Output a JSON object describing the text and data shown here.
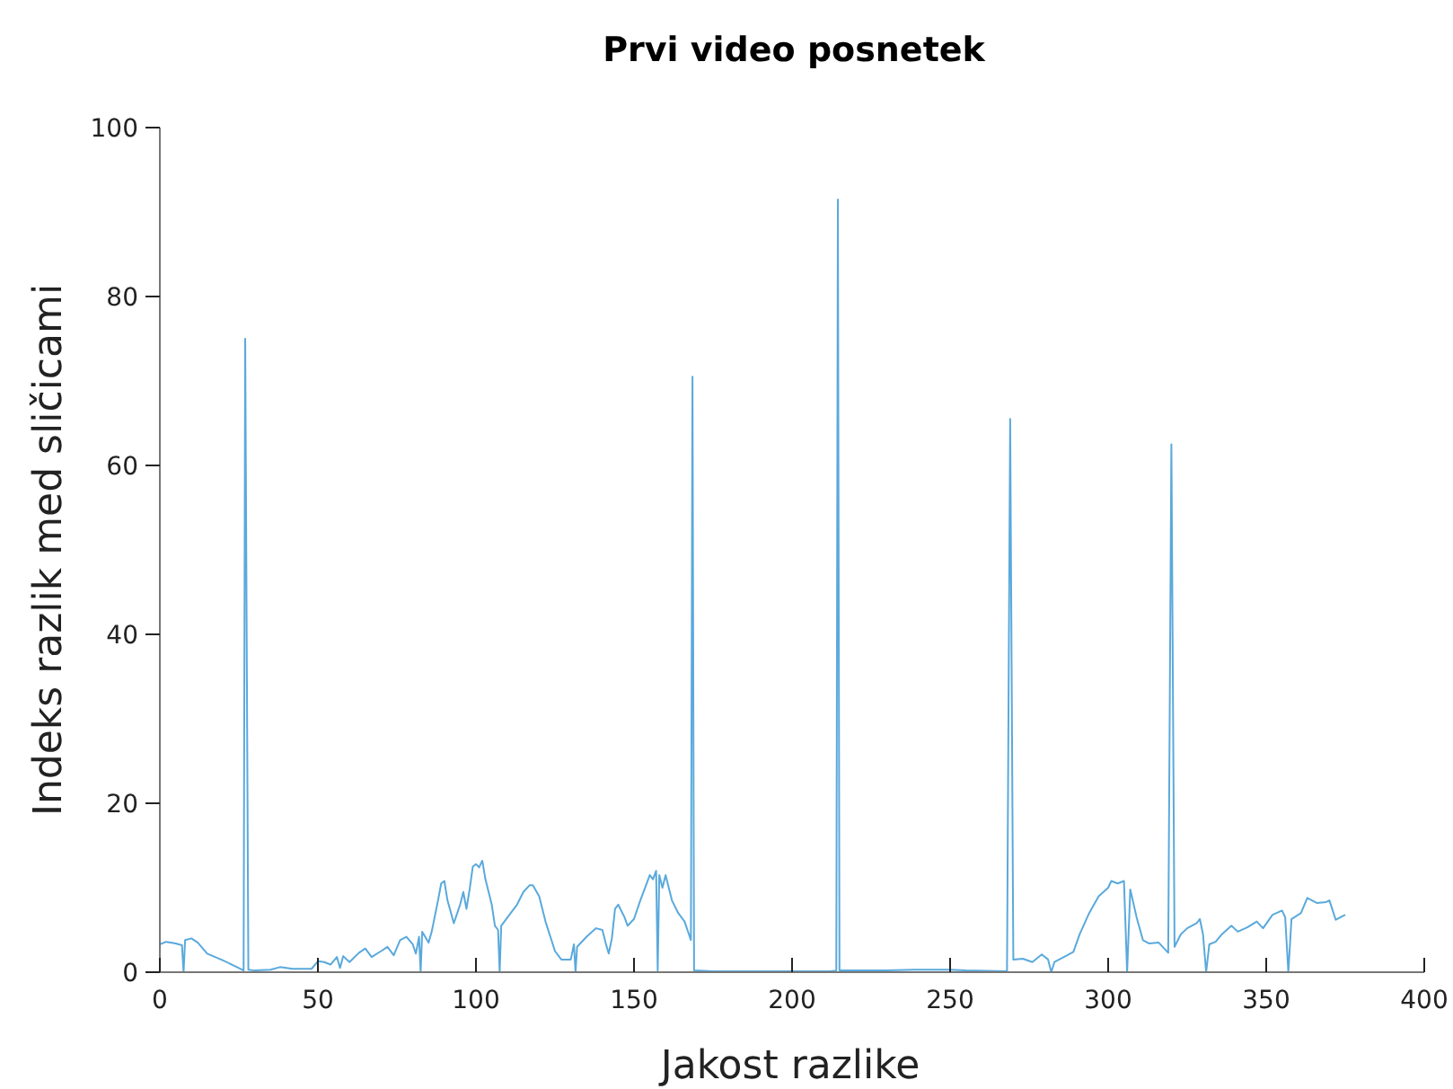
{
  "chart_data": {
    "type": "line",
    "title": "Prvi video posnetek",
    "xlabel": "Jakost razlike",
    "ylabel": "Indeks razlik med sličicami",
    "xlim": [
      0,
      400
    ],
    "ylim": [
      0,
      100
    ],
    "xticks": [
      0,
      50,
      100,
      150,
      200,
      250,
      300,
      350,
      400
    ],
    "yticks": [
      0,
      20,
      40,
      60,
      80,
      100
    ],
    "grid": false,
    "marker": "none",
    "line_style": "solid",
    "series": [
      {
        "color": "#5aa9dc",
        "x": [
          0,
          2,
          5,
          7,
          7.5,
          8,
          10,
          12,
          15,
          20,
          25,
          26.5,
          27,
          28,
          30,
          35,
          38,
          42,
          48,
          50,
          52,
          54,
          56,
          57,
          58,
          60,
          63,
          65,
          67,
          70,
          72,
          74,
          76,
          78,
          80,
          81,
          82,
          82.5,
          83,
          85,
          86,
          88,
          89,
          90,
          91,
          93,
          95,
          96,
          97,
          98,
          99,
          100,
          101,
          102,
          103,
          105,
          106,
          107,
          107.5,
          108,
          110,
          113,
          115,
          117,
          118,
          120,
          122,
          125,
          127,
          130,
          131,
          131.5,
          132,
          135,
          138,
          140,
          141,
          142,
          143,
          144,
          145,
          147,
          148,
          150,
          152,
          155,
          156,
          157,
          157.5,
          158,
          159,
          160,
          162,
          164,
          166,
          168,
          168.5,
          169,
          175,
          200,
          212,
          214,
          214.5,
          215,
          230,
          240,
          250,
          255,
          268,
          269,
          270,
          273,
          276,
          279,
          281,
          282,
          283,
          286,
          289,
          291,
          294,
          297,
          300,
          301,
          303,
          305,
          306,
          307,
          309,
          311,
          313,
          316,
          319,
          320,
          321,
          323,
          325,
          328,
          329,
          330,
          331,
          332,
          334,
          336,
          339,
          341,
          344,
          347,
          349,
          352,
          355,
          356,
          357,
          358,
          361,
          363,
          366,
          369,
          370,
          372,
          375
        ],
        "values": [
          3.3,
          3.6,
          3.4,
          3.2,
          0,
          3.8,
          4,
          3.5,
          2.2,
          1.4,
          0.5,
          0.2,
          75,
          0.3,
          0.2,
          0.3,
          0.6,
          0.4,
          0.4,
          1.3,
          1.2,
          0.9,
          1.8,
          0.5,
          1.9,
          1.2,
          2.3,
          2.8,
          1.8,
          2.5,
          3,
          2,
          3.8,
          4.2,
          3.3,
          2.2,
          4.2,
          0,
          4.8,
          3.5,
          4.8,
          8.5,
          10.5,
          10.8,
          8.5,
          5.8,
          8,
          9.5,
          7.5,
          9.8,
          12.5,
          12.8,
          12.4,
          13.2,
          11,
          8,
          5.5,
          5,
          0,
          5.5,
          6.5,
          8,
          9.5,
          10.3,
          10.3,
          9,
          6,
          2.5,
          1.5,
          1.5,
          3.3,
          0,
          3,
          4.2,
          5.2,
          5,
          3.5,
          2.2,
          4,
          7.5,
          8,
          6.5,
          5.5,
          6.3,
          8.5,
          11.5,
          11,
          12,
          0.2,
          11.5,
          10,
          11.5,
          8.5,
          7,
          6,
          3.8,
          70.5,
          0.2,
          0.1,
          0.1,
          0.1,
          0.2,
          91.5,
          0.2,
          0.2,
          0.3,
          0.3,
          0.2,
          0.1,
          65.5,
          1.5,
          1.6,
          1.2,
          2.1,
          1.5,
          0,
          1.2,
          1.8,
          2.4,
          4.5,
          7,
          9,
          10,
          10.8,
          10.5,
          10.8,
          0,
          9.8,
          6.5,
          3.8,
          3.4,
          3.5,
          2.3,
          62.5,
          3,
          4.5,
          5.2,
          5.8,
          6.3,
          4.5,
          0,
          3.3,
          3.6,
          4.5,
          5.5,
          4.8,
          5.3,
          6,
          5.2,
          6.8,
          7.3,
          6.5,
          0,
          6.3,
          7,
          8.8,
          8.2,
          8.3,
          8.5,
          6.2,
          6.8
        ]
      }
    ]
  }
}
